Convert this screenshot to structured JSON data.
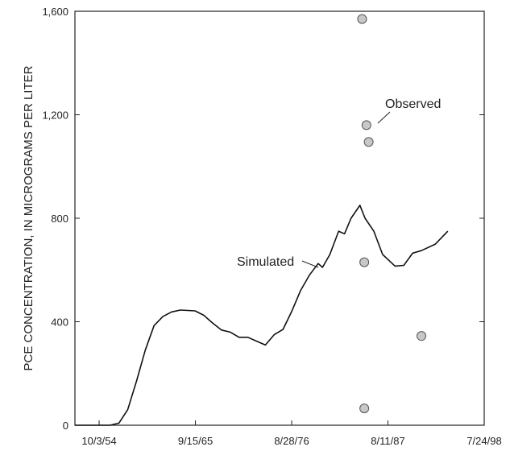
{
  "chart_data": {
    "type": "line",
    "title": "",
    "xlabel": "",
    "ylabel": "PCE CONCENTRATION, IN MICROGRAMS PER LITER",
    "x_ticks": [
      "10/3/54",
      "9/15/65",
      "8/28/76",
      "8/11/87",
      "7/24/98"
    ],
    "y_ticks": [
      "0",
      "400",
      "800",
      "1,200",
      "1,600"
    ],
    "xlim": [
      "1952-01-01",
      "1998-07-24"
    ],
    "ylim": [
      0,
      1600
    ],
    "grid": false,
    "colors": {
      "line": "#111111",
      "marker_fill": "#c8c8c8",
      "marker_edge": "#555555"
    },
    "series": [
      {
        "name": "Simulated",
        "kind": "line",
        "points": [
          [
            "1952-01-01",
            0
          ],
          [
            "1956-01-01",
            0
          ],
          [
            "1957-01-01",
            8
          ],
          [
            "1958-01-01",
            60
          ],
          [
            "1959-01-01",
            170
          ],
          [
            "1960-01-01",
            290
          ],
          [
            "1961-01-01",
            385
          ],
          [
            "1962-01-01",
            420
          ],
          [
            "1963-01-01",
            438
          ],
          [
            "1964-01-01",
            445
          ],
          [
            "1965-09-01",
            442
          ],
          [
            "1966-09-01",
            425
          ],
          [
            "1967-09-01",
            395
          ],
          [
            "1968-09-01",
            368
          ],
          [
            "1969-09-01",
            360
          ],
          [
            "1970-09-01",
            340
          ],
          [
            "1971-09-01",
            340
          ],
          [
            "1972-09-01",
            325
          ],
          [
            "1973-09-01",
            310
          ],
          [
            "1974-09-01",
            350
          ],
          [
            "1975-09-01",
            370
          ],
          [
            "1976-09-01",
            440
          ],
          [
            "1977-09-01",
            520
          ],
          [
            "1978-09-01",
            580
          ],
          [
            "1979-09-01",
            625
          ],
          [
            "1980-03-01",
            610
          ],
          [
            "1981-01-01",
            660
          ],
          [
            "1982-01-01",
            750
          ],
          [
            "1982-09-01",
            740
          ],
          [
            "1983-06-01",
            800
          ],
          [
            "1984-06-01",
            850
          ],
          [
            "1985-01-01",
            800
          ],
          [
            "1986-01-01",
            750
          ],
          [
            "1987-01-01",
            660
          ],
          [
            "1988-06-01",
            615
          ],
          [
            "1989-06-01",
            618
          ],
          [
            "1990-06-01",
            665
          ],
          [
            "1991-06-01",
            675
          ],
          [
            "1993-01-01",
            700
          ],
          [
            "1994-06-01",
            750
          ]
        ]
      },
      {
        "name": "Observed",
        "kind": "scatter",
        "points": [
          [
            "1984-09-01",
            1570
          ],
          [
            "1985-03-01",
            1160
          ],
          [
            "1985-06-01",
            1095
          ],
          [
            "1984-12-01",
            630
          ],
          [
            "1991-06-01",
            345
          ],
          [
            "1984-12-01",
            65
          ]
        ]
      }
    ],
    "annotations": [
      {
        "text": "Observed",
        "target_series": "Observed"
      },
      {
        "text": "Simulated",
        "target_series": "Simulated"
      }
    ]
  }
}
